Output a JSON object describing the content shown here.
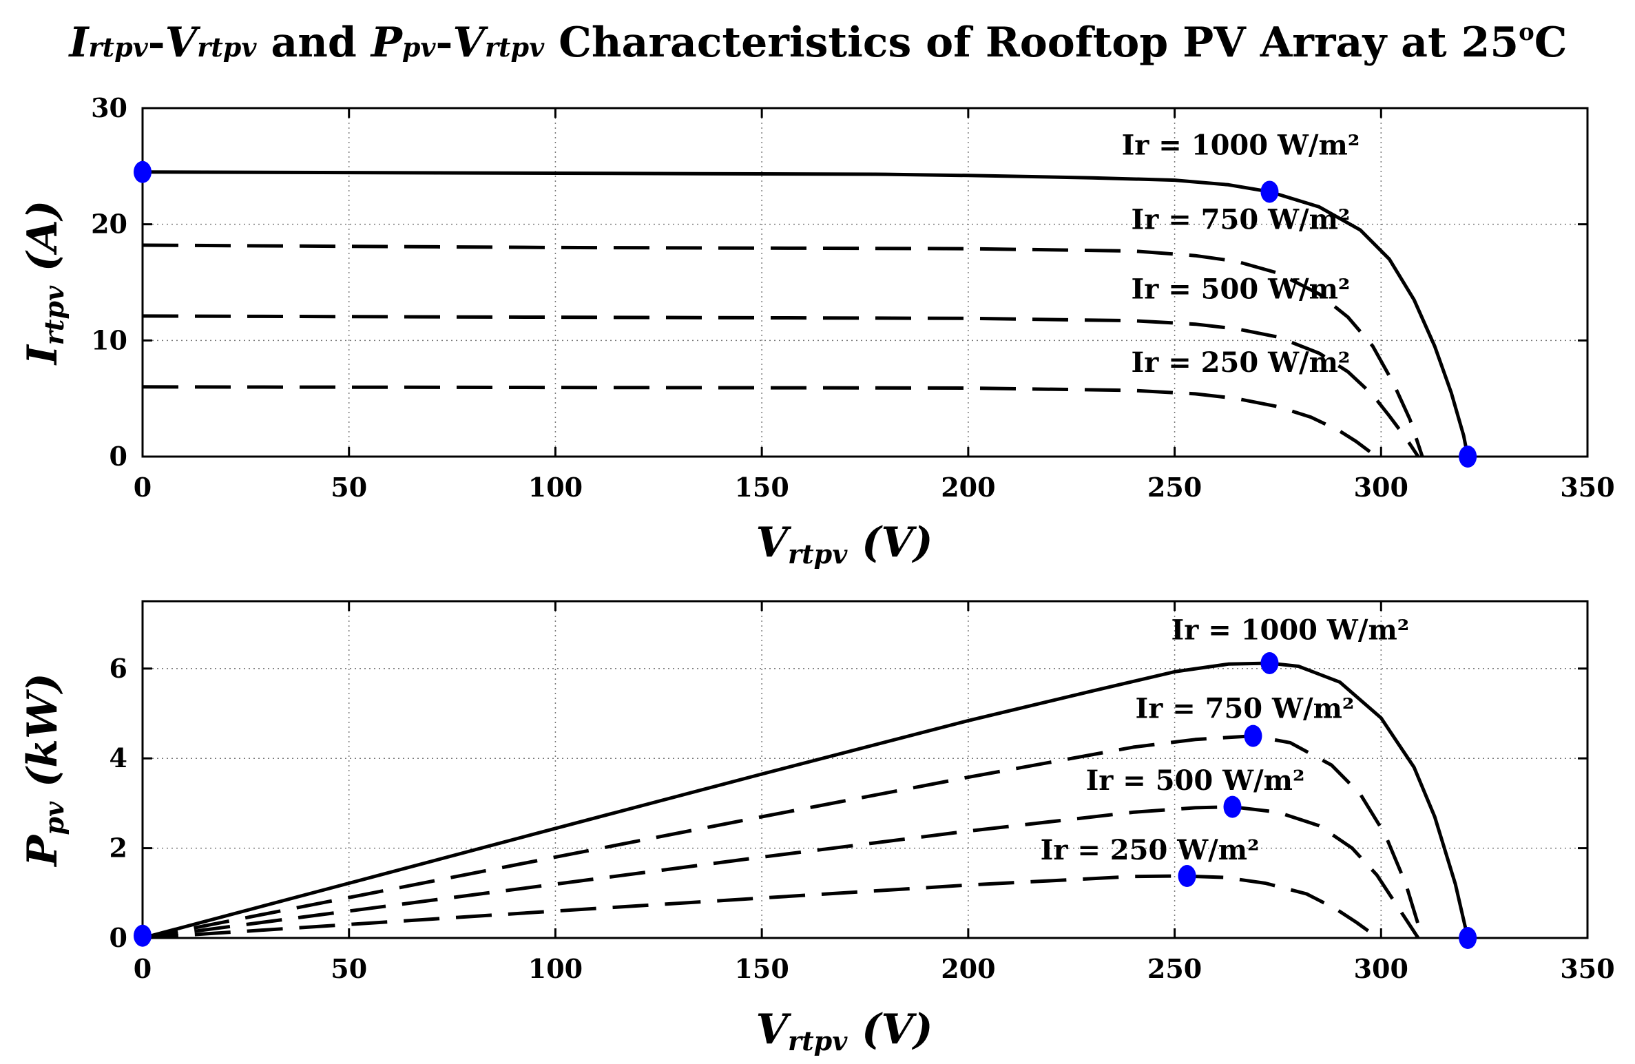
{
  "title": {
    "i1": "I",
    "s1": "rtpv",
    "d1": "-",
    "i2": "V",
    "s2": "rtpv",
    "and": " and ",
    "i3": "P",
    "s3": "pv",
    "d2": "-",
    "i4": "V",
    "s4": "rtpv",
    "rest": " Characteristics of Rooftop PV Array at 25",
    "sup": "o",
    "unit": "C"
  },
  "colors": {
    "curve": "#000000",
    "marker": "#0000ff",
    "grid": "#777777"
  },
  "chart_data": [
    {
      "type": "line",
      "name": "iv",
      "xlabel_main": "V",
      "xlabel_sub": "rtpv",
      "xlabel_unit": " (V)",
      "ylabel_main": "I",
      "ylabel_sub": "rtpv",
      "ylabel_unit": " (A)",
      "xlim": [
        0,
        350
      ],
      "ylim": [
        0,
        30
      ],
      "xticks": [
        0,
        50,
        100,
        150,
        200,
        250,
        300,
        350
      ],
      "yticks": [
        0,
        10,
        20,
        30
      ],
      "series": [
        {
          "name": "Ir = 1000 W/m²",
          "style": "solid",
          "x": [
            0,
            100,
            180,
            200,
            230,
            250,
            263,
            273,
            285,
            295,
            302,
            308,
            313,
            317,
            320,
            321
          ],
          "y": [
            24.5,
            24.4,
            24.3,
            24.2,
            24.0,
            23.8,
            23.4,
            22.8,
            21.5,
            19.5,
            17.0,
            13.5,
            9.5,
            5.5,
            1.8,
            0
          ]
        },
        {
          "name": "Ir = 750 W/m²",
          "style": "dashed",
          "x": [
            0,
            100,
            200,
            240,
            255,
            265,
            275,
            285,
            292,
            298,
            303,
            307,
            310
          ],
          "y": [
            18.2,
            18.0,
            17.9,
            17.7,
            17.3,
            16.8,
            15.8,
            14.0,
            12.0,
            9.5,
            6.3,
            3.2,
            0
          ]
        },
        {
          "name": "Ir = 500 W/m²",
          "style": "dashed",
          "x": [
            0,
            100,
            200,
            240,
            255,
            265,
            275,
            285,
            292,
            298,
            302,
            306,
            309
          ],
          "y": [
            12.1,
            12.0,
            11.9,
            11.7,
            11.4,
            11.0,
            10.3,
            8.9,
            7.3,
            5.3,
            3.5,
            1.6,
            0
          ]
        },
        {
          "name": "Ir = 250 W/m²",
          "style": "dashed",
          "x": [
            0,
            100,
            200,
            240,
            255,
            265,
            275,
            283,
            290,
            294,
            297,
            299
          ],
          "y": [
            6.0,
            5.95,
            5.9,
            5.7,
            5.4,
            5.0,
            4.3,
            3.4,
            2.2,
            1.3,
            0.5,
            0
          ]
        }
      ],
      "points": [
        {
          "x": 0,
          "y": 24.5
        },
        {
          "x": 273,
          "y": 22.8
        },
        {
          "x": 321,
          "y": 0
        }
      ],
      "annotations": [
        {
          "text": "Ir = 1000 W/m²",
          "x": 266,
          "y": 26.0
        },
        {
          "text": "Ir = 750 W/m²",
          "x": 266,
          "y": 19.6
        },
        {
          "text": "Ir = 500 W/m²",
          "x": 266,
          "y": 13.6
        },
        {
          "text": "Ir = 250 W/m²",
          "x": 266,
          "y": 7.3
        }
      ]
    },
    {
      "type": "line",
      "name": "pv",
      "xlabel_main": "V",
      "xlabel_sub": "rtpv",
      "xlabel_unit": " (V)",
      "ylabel_main": "P",
      "ylabel_sub": "pv",
      "ylabel_unit": " (kW)",
      "xlim": [
        0,
        350
      ],
      "ylim": [
        0,
        7.5
      ],
      "xticks": [
        0,
        50,
        100,
        150,
        200,
        250,
        300,
        350
      ],
      "yticks": [
        0,
        2,
        4,
        6
      ],
      "series": [
        {
          "name": "Ir = 1000 W/m²",
          "style": "solid",
          "x": [
            0,
            50,
            100,
            150,
            200,
            230,
            250,
            263,
            273,
            280,
            290,
            300,
            308,
            313,
            318,
            321
          ],
          "y": [
            0,
            1.22,
            2.44,
            3.65,
            4.84,
            5.5,
            5.93,
            6.1,
            6.12,
            6.05,
            5.7,
            4.9,
            3.8,
            2.7,
            1.2,
            0
          ]
        },
        {
          "name": "Ir = 750 W/m²",
          "style": "dashed",
          "x": [
            0,
            50,
            100,
            150,
            200,
            240,
            255,
            269,
            278,
            288,
            295,
            301,
            306,
            310
          ],
          "y": [
            0,
            0.9,
            1.8,
            2.7,
            3.58,
            4.25,
            4.42,
            4.5,
            4.35,
            3.85,
            3.2,
            2.3,
            1.2,
            0
          ]
        },
        {
          "name": "Ir = 500 W/m²",
          "style": "dashed",
          "x": [
            0,
            50,
            100,
            150,
            200,
            240,
            255,
            264,
            275,
            285,
            293,
            299,
            304,
            309
          ],
          "y": [
            0,
            0.6,
            1.2,
            1.8,
            2.38,
            2.8,
            2.9,
            2.92,
            2.8,
            2.5,
            2.0,
            1.4,
            0.7,
            0
          ]
        },
        {
          "name": "Ir = 250 W/m²",
          "style": "dashed",
          "x": [
            0,
            50,
            100,
            150,
            200,
            240,
            252,
            262,
            272,
            282,
            289,
            294,
            297,
            299
          ],
          "y": [
            0,
            0.3,
            0.6,
            0.89,
            1.18,
            1.37,
            1.38,
            1.35,
            1.22,
            0.98,
            0.65,
            0.35,
            0.15,
            0
          ]
        }
      ],
      "points": [
        {
          "x": 0,
          "y": 0.05
        },
        {
          "x": 273,
          "y": 6.12
        },
        {
          "x": 269,
          "y": 4.5
        },
        {
          "x": 264,
          "y": 2.92
        },
        {
          "x": 253,
          "y": 1.38
        },
        {
          "x": 321,
          "y": 0
        }
      ],
      "annotations": [
        {
          "text": "Ir = 1000 W/m²",
          "x": 278,
          "y": 6.65
        },
        {
          "text": "Ir = 750 W/m²",
          "x": 267,
          "y": 4.9
        },
        {
          "text": "Ir = 500 W/m²",
          "x": 255,
          "y": 3.3
        },
        {
          "text": "Ir = 250 W/m²",
          "x": 244,
          "y": 1.75
        }
      ]
    }
  ]
}
